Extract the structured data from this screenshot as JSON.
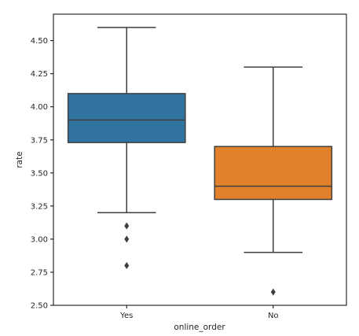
{
  "chart_data": {
    "type": "box",
    "title": "",
    "xlabel": "online_order",
    "ylabel": "rate",
    "ylim": [
      2.5,
      4.7
    ],
    "yticks": [
      2.5,
      2.75,
      3.0,
      3.25,
      3.5,
      3.75,
      4.0,
      4.25,
      4.5
    ],
    "ytick_labels": [
      "2.50",
      "2.75",
      "3.00",
      "3.25",
      "3.50",
      "3.75",
      "4.00",
      "4.25",
      "4.50"
    ],
    "categories": [
      "Yes",
      "No"
    ],
    "boxes": [
      {
        "category": "Yes",
        "whisker_low": 3.2,
        "q1": 3.73,
        "median": 3.9,
        "q3": 4.1,
        "whisker_high": 4.6,
        "outliers": [
          3.1,
          3.0,
          2.8
        ],
        "color": "#3274a1"
      },
      {
        "category": "No",
        "whisker_low": 2.9,
        "q1": 3.3,
        "median": 3.4,
        "q3": 3.7,
        "whisker_high": 4.3,
        "outliers": [
          2.6
        ],
        "color": "#e1812c"
      }
    ],
    "grid": false,
    "legend": "none",
    "line_color": "#3f3f3f"
  }
}
